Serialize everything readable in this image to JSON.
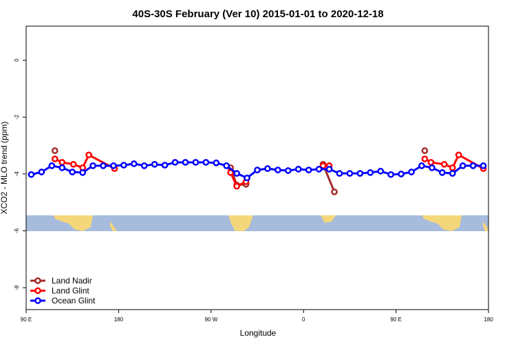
{
  "chart_data": {
    "type": "line",
    "title": "40S-30S February (Ver 10)   2015-01-01 to 2020-12-18",
    "x_label": "Longitude",
    "y_label": "XCO2 - MLO trend (ppm)",
    "xlim": [
      90,
      540
    ],
    "ylim": [
      -8.77,
      1.2
    ],
    "xticks": [
      {
        "value": 90,
        "label": "90 E"
      },
      {
        "value": 180,
        "label": "180"
      },
      {
        "value": 270,
        "label": "90 W"
      },
      {
        "value": 360,
        "label": "0"
      },
      {
        "value": 450,
        "label": "90 E"
      },
      {
        "value": 540,
        "label": "180"
      }
    ],
    "yticks": [
      0,
      -2,
      -4,
      -6,
      -8
    ],
    "legend": "bottom-left",
    "series": [
      {
        "name": "Land Nadir",
        "color": "#a52a2a",
        "x": [
          118,
          200,
          289,
          295,
          304,
          340,
          379,
          390,
          430,
          478
        ],
        "values": [
          -3.18,
          null,
          -3.78,
          -4.39,
          -4.36,
          null,
          -3.66,
          -4.63,
          null,
          -3.18
        ]
      },
      {
        "name": "Land Glint",
        "color": "#ff0000",
        "x": [
          118,
          125,
          136,
          145,
          151,
          176,
          230,
          289,
          295,
          304,
          340,
          379,
          385,
          430,
          478,
          484,
          497,
          505,
          511,
          535
        ],
        "values": [
          -3.47,
          -3.59,
          -3.66,
          -3.78,
          -3.33,
          -3.81,
          null,
          -3.95,
          -4.43,
          -4.27,
          null,
          -3.71,
          -3.71,
          null,
          -3.47,
          -3.59,
          -3.66,
          -3.78,
          -3.33,
          -3.81
        ]
      },
      {
        "name": "Ocean Glint",
        "color": "#0000ff",
        "x": [
          95,
          105,
          115,
          125,
          135,
          145,
          155,
          165,
          175,
          185,
          195,
          205,
          215,
          225,
          235,
          245,
          255,
          265,
          275,
          285,
          295,
          305,
          315,
          325,
          335,
          345,
          355,
          365,
          375,
          385,
          395,
          405,
          415,
          425,
          435,
          445,
          455,
          465,
          475,
          485,
          495,
          505,
          515,
          525,
          535
        ],
        "values": [
          -4.02,
          -3.93,
          -3.71,
          -3.78,
          -3.93,
          -3.95,
          -3.71,
          -3.71,
          -3.71,
          -3.69,
          -3.64,
          -3.71,
          -3.66,
          -3.69,
          -3.59,
          -3.59,
          -3.59,
          -3.59,
          -3.61,
          -3.71,
          -3.98,
          -4.14,
          -3.86,
          -3.81,
          -3.86,
          -3.88,
          -3.83,
          -3.86,
          -3.83,
          -3.83,
          -3.98,
          -3.98,
          -3.98,
          -3.95,
          -3.9,
          -4.02,
          -4.0,
          -3.93,
          -3.71,
          -3.78,
          -3.95,
          -3.98,
          -3.71,
          -3.71,
          -3.71
        ]
      }
    ]
  }
}
